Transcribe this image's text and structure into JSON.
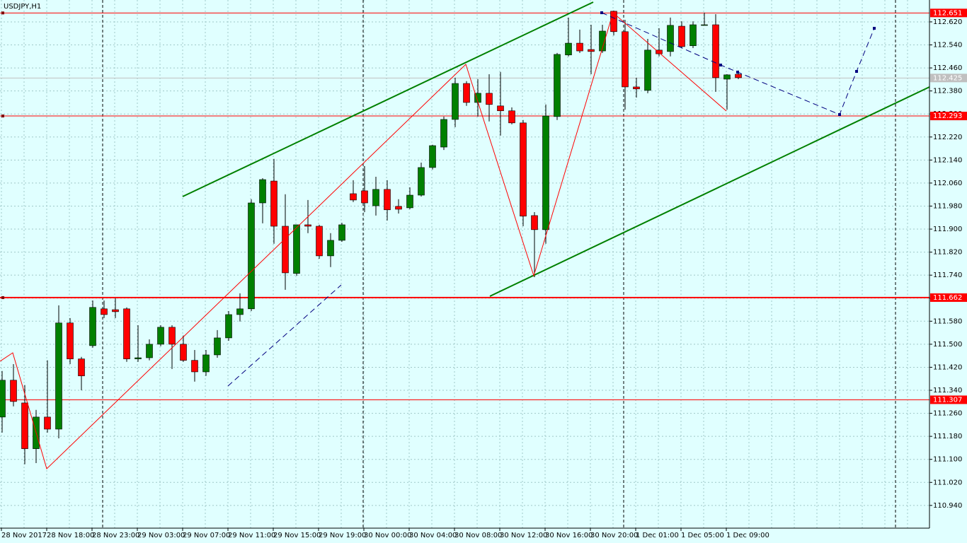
{
  "chart_data": {
    "type": "candlestick",
    "title": "USDJPY,H1",
    "categories": [
      "28 Nov 2017",
      null,
      null,
      null,
      "28 Nov 18:00",
      null,
      null,
      null,
      "28 Nov 23:00",
      null,
      null,
      null,
      "29 Nov 03:00",
      null,
      null,
      null,
      "29 Nov 07:00",
      null,
      null,
      null,
      "29 Nov 11:00",
      null,
      null,
      null,
      "29 Nov 15:00",
      null,
      null,
      null,
      "29 Nov 19:00",
      null,
      null,
      null,
      "30 Nov 00:00",
      null,
      null,
      null,
      "30 Nov 04:00",
      null,
      null,
      null,
      "30 Nov 08:00",
      null,
      null,
      null,
      "30 Nov 12:00",
      null,
      null,
      null,
      "30 Nov 16:00",
      null,
      null,
      null,
      "30 Nov 20:00",
      null,
      null,
      null,
      "1 Dec 01:00",
      null,
      null,
      null,
      "1 Dec 05:00",
      null,
      null,
      null,
      "1 Dec 09:00",
      null
    ],
    "open": [
      111.247,
      111.375,
      111.296,
      111.137,
      111.247,
      111.205,
      111.574,
      111.449,
      111.495,
      111.623,
      111.62,
      111.623,
      111.449,
      111.453,
      111.5,
      111.559,
      111.5,
      111.444,
      111.404,
      111.463,
      111.522,
      111.603,
      111.623,
      111.991,
      112.067,
      111.91,
      111.746,
      111.915,
      111.91,
      111.807,
      111.861,
      112.023,
      112.033,
      111.981,
      112.038,
      111.979,
      111.974,
      112.018,
      112.114,
      112.185,
      112.281,
      112.406,
      112.34,
      112.372,
      112.328,
      112.311,
      112.269,
      111.947,
      111.898,
      112.291,
      112.505,
      112.546,
      112.524,
      112.519,
      112.657,
      112.586,
      112.394,
      112.382,
      112.522,
      112.517,
      112.605,
      112.537,
      112.609,
      112.61,
      112.421,
      112.438
    ],
    "high": [
      111.407,
      111.431,
      111.358,
      111.272,
      111.444,
      111.635,
      111.591,
      111.456,
      111.652,
      111.652,
      111.66,
      111.628,
      111.566,
      111.517,
      111.566,
      111.566,
      111.53,
      111.48,
      111.48,
      111.549,
      111.615,
      111.677,
      112.004,
      112.077,
      112.144,
      112.021,
      111.915,
      112.001,
      111.915,
      111.886,
      111.922,
      112.07,
      112.119,
      112.082,
      112.07,
      112.004,
      112.045,
      112.131,
      112.193,
      112.291,
      112.426,
      112.414,
      112.421,
      112.438,
      112.446,
      112.323,
      112.279,
      111.959,
      112.333,
      112.512,
      112.635,
      112.593,
      112.61,
      112.61,
      112.659,
      112.627,
      112.426,
      112.561,
      112.598,
      112.635,
      112.622,
      112.622,
      112.652,
      112.647,
      112.438,
      112.451
    ],
    "low": [
      111.193,
      111.284,
      111.083,
      111.087,
      111.193,
      111.173,
      111.431,
      111.34,
      111.488,
      111.591,
      111.591,
      111.439,
      111.439,
      111.444,
      111.493,
      111.414,
      111.439,
      111.37,
      111.39,
      111.453,
      111.512,
      111.579,
      111.615,
      111.92,
      111.849,
      111.689,
      111.738,
      111.886,
      111.797,
      111.768,
      111.856,
      111.994,
      111.959,
      111.947,
      111.93,
      111.954,
      111.969,
      112.013,
      112.107,
      112.175,
      112.254,
      112.328,
      112.291,
      112.274,
      112.225,
      112.264,
      111.91,
      111.733,
      111.849,
      112.279,
      112.5,
      112.512,
      112.438,
      112.512,
      112.573,
      112.315,
      112.357,
      112.372,
      112.5,
      112.5,
      112.529,
      112.529,
      112.608,
      112.377,
      112.315,
      112.421
    ],
    "close": [
      111.375,
      111.301,
      111.137,
      111.247,
      111.205,
      111.574,
      111.449,
      111.39,
      111.628,
      111.603,
      111.613,
      111.449,
      111.453,
      111.5,
      111.559,
      111.5,
      111.444,
      111.404,
      111.463,
      111.522,
      111.603,
      111.623,
      111.991,
      112.072,
      111.91,
      111.748,
      111.915,
      111.91,
      111.807,
      111.861,
      111.915,
      112.001,
      111.991,
      112.038,
      111.967,
      111.969,
      112.018,
      112.114,
      112.19,
      112.281,
      112.406,
      112.34,
      112.372,
      112.333,
      112.311,
      112.269,
      111.945,
      111.898,
      112.293,
      112.507,
      112.546,
      112.519,
      112.517,
      112.588,
      112.586,
      112.394,
      112.387,
      112.522,
      112.509,
      112.608,
      112.534,
      112.61,
      112.61,
      112.426,
      112.436,
      112.426
    ],
    "up_color": "#008000",
    "down_color": "#ff0000",
    "ylim": [
      110.861,
      112.696
    ],
    "yticks": [
      {
        "value": 112.62,
        "label": "112.620"
      },
      {
        "value": 112.54,
        "label": "112.540"
      },
      {
        "value": 112.46,
        "label": "112.460"
      },
      {
        "value": 112.38,
        "label": "112.380"
      },
      {
        "value": 112.3,
        "label": "112.300"
      },
      {
        "value": 112.22,
        "label": "112.220"
      },
      {
        "value": 112.14,
        "label": "112.140"
      },
      {
        "value": 112.06,
        "label": "112.060"
      },
      {
        "value": 111.98,
        "label": "111.980"
      },
      {
        "value": 111.9,
        "label": "111.900"
      },
      {
        "value": 111.82,
        "label": "111.820"
      },
      {
        "value": 111.74,
        "label": "111.740"
      },
      {
        "value": 111.66,
        "label": "111.660"
      },
      {
        "value": 111.58,
        "label": "111.580"
      },
      {
        "value": 111.5,
        "label": "111.500"
      },
      {
        "value": 111.42,
        "label": "111.420"
      },
      {
        "value": 111.34,
        "label": "111.340"
      },
      {
        "value": 111.26,
        "label": "111.260"
      },
      {
        "value": 111.18,
        "label": "111.180"
      },
      {
        "value": 111.1,
        "label": "111.100"
      },
      {
        "value": 111.02,
        "label": "111.020"
      },
      {
        "value": 110.94,
        "label": "110.940"
      }
    ],
    "grid": true,
    "hlines": [
      {
        "value": 112.651,
        "color": "#ff0000",
        "width": 1
      },
      {
        "value": 112.293,
        "color": "#ff0000",
        "width": 1
      },
      {
        "value": 111.662,
        "color": "#ff0000",
        "width": 2
      },
      {
        "value": 111.307,
        "color": "#ff0000",
        "width": 1
      }
    ],
    "price_line": {
      "value": 112.425,
      "color": "#c0c0c0"
    }
  }
}
